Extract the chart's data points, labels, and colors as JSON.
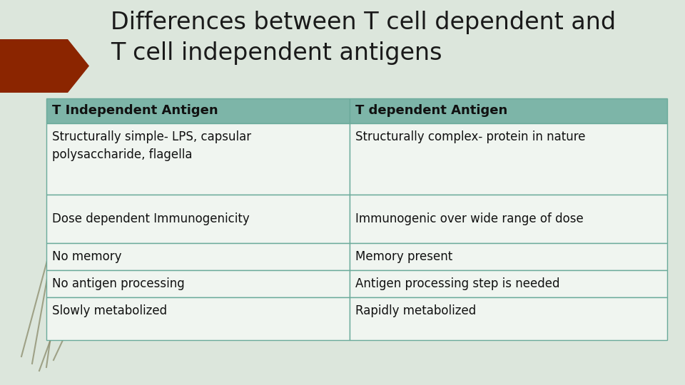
{
  "title_line1": "Differences between T cell dependent and",
  "title_line2": "T cell independent antigens",
  "title_fontsize": 24,
  "title_color": "#1a1a1a",
  "slide_bg": "#dce6dc",
  "table_bg_header": "#7db5a8",
  "table_bg_body": "#f0f5f0",
  "table_border_color": "#6aaa9a",
  "header_text_color": "#111111",
  "cell_text_color": "#111111",
  "arrow_color": "#8B2500",
  "col1_header": "T Independent Antigen",
  "col2_header": "T dependent Antigen",
  "rows": [
    [
      "Structurally simple- LPS, capsular\npolysaccharide, flagella",
      "Structurally complex- protein in nature"
    ],
    [
      "Dose dependent Immunogenicity",
      "Immunogenic over wide range of dose"
    ],
    [
      "No memory",
      "Memory present"
    ],
    [
      "No antigen processing",
      "Antigen processing step is needed"
    ],
    [
      "Slowly metabolized",
      "Rapidly metabolized"
    ]
  ],
  "header_fontsize": 13,
  "cell_fontsize": 12,
  "grass_color": "#8a8a6a",
  "grass_lines": [
    [
      0.025,
      0.52,
      0.025,
      0.1,
      -25
    ],
    [
      0.04,
      0.5,
      0.035,
      0.1,
      -18
    ],
    [
      0.055,
      0.55,
      0.05,
      0.1,
      -30
    ],
    [
      0.07,
      0.48,
      0.06,
      0.1,
      -15
    ]
  ]
}
